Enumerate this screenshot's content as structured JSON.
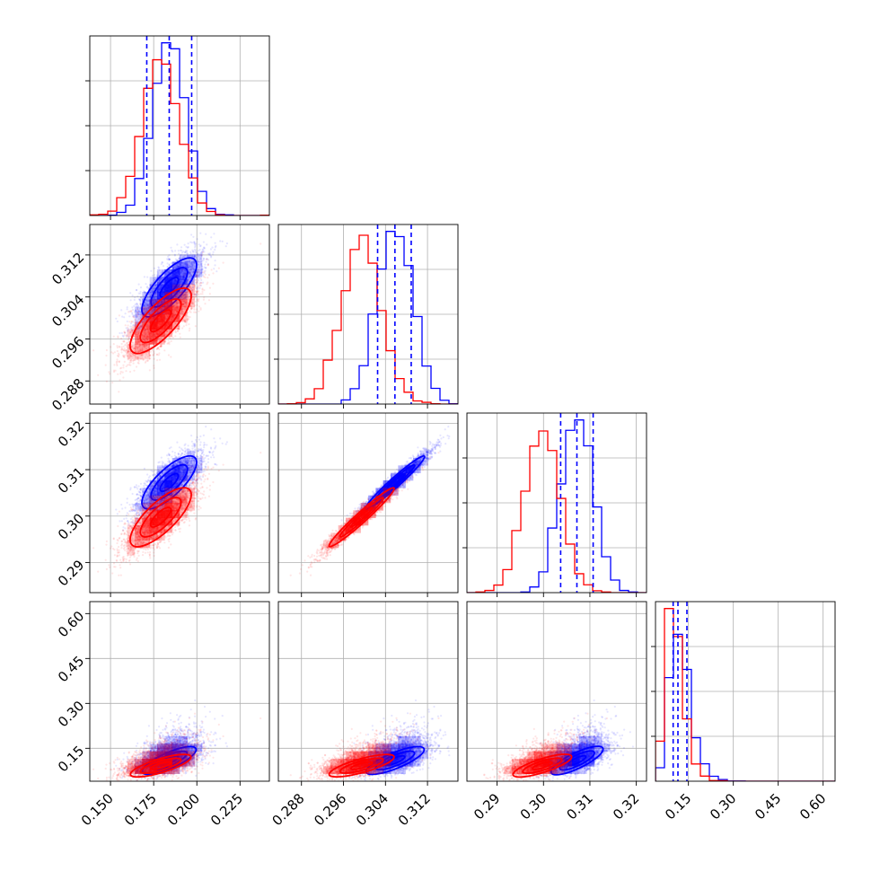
{
  "chart_data": {
    "type": "scatter",
    "title": "",
    "layout": "corner plot (lower-triangle), 4 parameters",
    "grid": true,
    "colors": {
      "series_a": "#0000ff",
      "series_b": "#ff0000"
    },
    "parameters": [
      {
        "range": [
          0.138,
          0.242
        ],
        "ticks": [
          0.15,
          0.175,
          0.2,
          0.225
        ],
        "tick_labels": [
          "0.150",
          "0.175",
          "0.200",
          "0.225"
        ]
      },
      {
        "range": [
          0.2836,
          0.3178
        ],
        "ticks": [
          0.288,
          0.296,
          0.304,
          0.312
        ],
        "tick_labels": [
          "0.288",
          "0.296",
          "0.304",
          "0.312"
        ]
      },
      {
        "range": [
          0.2835,
          0.3222
        ],
        "ticks": [
          0.29,
          0.3,
          0.31,
          0.32
        ],
        "tick_labels": [
          "0.29",
          "0.30",
          "0.31",
          "0.32"
        ]
      },
      {
        "range": [
          0.04,
          0.64
        ],
        "ticks": [
          0.15,
          0.3,
          0.45,
          0.6
        ],
        "tick_labels": [
          "0.15",
          "0.30",
          "0.45",
          "0.60"
        ]
      }
    ],
    "series": [
      {
        "color": "#0000ff",
        "means": [
          0.184,
          0.3058,
          0.3072,
          0.125
        ],
        "stds": [
          0.0095,
          0.0034,
          0.0035,
          0.035
        ],
        "quantiles": [
          [
            0.171,
            0.184,
            0.197
          ],
          [
            0.3025,
            0.3058,
            0.3089
          ],
          [
            0.3037,
            0.3072,
            0.3107
          ],
          [
            0.099,
            0.115,
            0.145
          ]
        ],
        "correlations": [
          [
            1,
            0.75,
            0.75,
            0.5
          ],
          [
            0.75,
            1,
            0.97,
            0.5
          ],
          [
            0.75,
            0.97,
            1,
            0.5
          ],
          [
            0.5,
            0.5,
            0.5,
            1
          ]
        ]
      },
      {
        "color": "#ff0000",
        "means": [
          0.179,
          0.2995,
          0.2998,
          0.106
        ],
        "stds": [
          0.0105,
          0.0037,
          0.0038,
          0.03
        ],
        "quantiles": [],
        "correlations": [
          [
            1,
            0.75,
            0.75,
            0.5
          ],
          [
            0.75,
            1,
            0.97,
            0.5
          ],
          [
            0.75,
            0.97,
            1,
            0.5
          ],
          [
            0.5,
            0.5,
            0.5,
            1
          ]
        ]
      }
    ]
  }
}
